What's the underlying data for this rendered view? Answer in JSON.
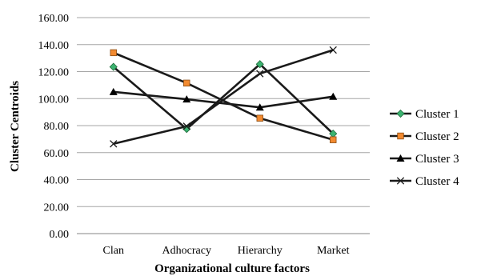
{
  "chart_data": {
    "type": "line",
    "title": "",
    "xlabel": "Organizational culture  factors",
    "ylabel": "Cluster  Centroids",
    "categories": [
      "Clan",
      "Adhocracy",
      "Hierarchy",
      "Market"
    ],
    "ylim": [
      0,
      160
    ],
    "ytick_step": 20,
    "ytick_labels": [
      "0.00",
      "20.00",
      "40.00",
      "60.00",
      "80.00",
      "100.00",
      "120.00",
      "140.00",
      "160.00"
    ],
    "grid": true,
    "legend_position": "right",
    "series": [
      {
        "name": "Cluster 1",
        "values": [
          123.5,
          77.5,
          125.5,
          74
        ],
        "marker": "diamond",
        "marker_color": "#3cb371",
        "line_color": "#1a1a1a"
      },
      {
        "name": "Cluster 2",
        "values": [
          134,
          111.5,
          85.5,
          69.5
        ],
        "marker": "square",
        "marker_color": "#f28a30",
        "line_color": "#1a1a1a"
      },
      {
        "name": "Cluster 3",
        "values": [
          105,
          99.5,
          93.5,
          101.5
        ],
        "marker": "triangle",
        "marker_color": "#000000",
        "line_color": "#1a1a1a"
      },
      {
        "name": "Cluster 4",
        "values": [
          66.5,
          79.5,
          118.5,
          136
        ],
        "marker": "x",
        "marker_color": "#1a1a1a",
        "line_color": "#1a1a1a"
      }
    ]
  }
}
